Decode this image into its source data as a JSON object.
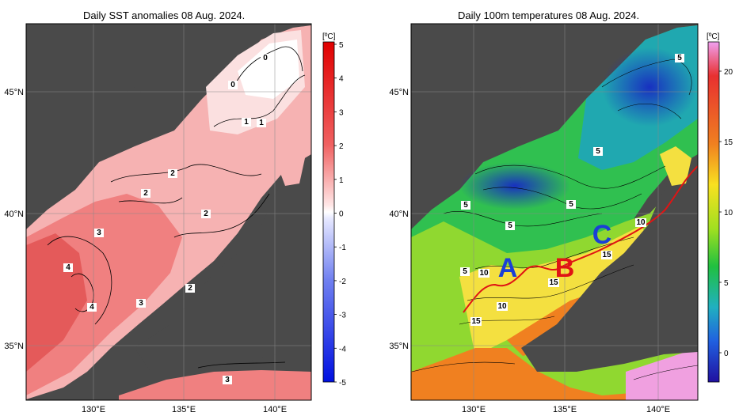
{
  "left_panel": {
    "title": "Daily SST anomalies 08 Aug. 2024.",
    "colorbar_unit": "[ºC]",
    "colorbar_ticks": [
      "5",
      "4",
      "3",
      "2",
      "1",
      "0",
      "-1",
      "-2",
      "-3",
      "-4",
      "-5"
    ],
    "contour_labels": [
      "0",
      "0",
      "1",
      "1",
      "2",
      "2",
      "2",
      "2",
      "3",
      "3",
      "3",
      "4",
      "4"
    ]
  },
  "right_panel": {
    "title": "Daily 100m temperatures 08 Aug. 2024.",
    "colorbar_unit": "[ºC]",
    "colorbar_ticks": [
      "20",
      "15",
      "10",
      "5",
      "0"
    ],
    "contour_labels": [
      "5",
      "5",
      "5",
      "5",
      "5",
      "5",
      "10",
      "10",
      "10",
      "15",
      "15",
      "15"
    ],
    "zone_labels": [
      "A",
      "B",
      "C"
    ]
  },
  "axes": {
    "lat_ticks": [
      "45°N",
      "40°N",
      "35°N"
    ],
    "lon_ticks": [
      "130°E",
      "135°E",
      "140°E"
    ]
  },
  "colors": {
    "land": "#4a4a4a",
    "zone_a": "#1a3fd6",
    "zone_b": "#e01414",
    "zone_c": "#1a3fd6",
    "front_line": "#e01414"
  }
}
